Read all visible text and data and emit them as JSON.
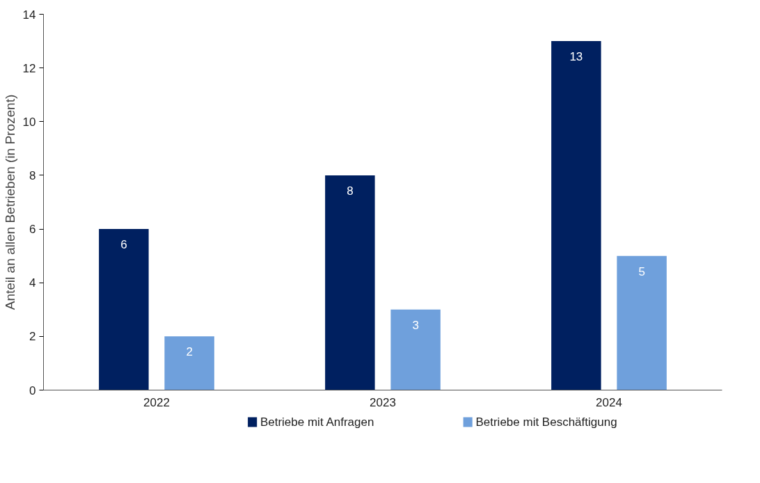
{
  "chart_data": {
    "type": "bar",
    "ylabel": "Anteil an allen Betrieben (in Prozent)",
    "categories": [
      "2022",
      "2023",
      "2024"
    ],
    "series": [
      {
        "name": "Betriebe mit Anfragen",
        "color": "#002060",
        "values": [
          6,
          8,
          13
        ]
      },
      {
        "name": "Betriebe mit Beschäftigung",
        "color": "#6fa0dc",
        "values": [
          2,
          3,
          5
        ]
      }
    ],
    "ylim": [
      0,
      14
    ],
    "yticks": [
      0,
      2,
      4,
      6,
      8,
      10,
      12,
      14
    ],
    "grid": false,
    "legend": "bottom",
    "data_labels": true
  }
}
